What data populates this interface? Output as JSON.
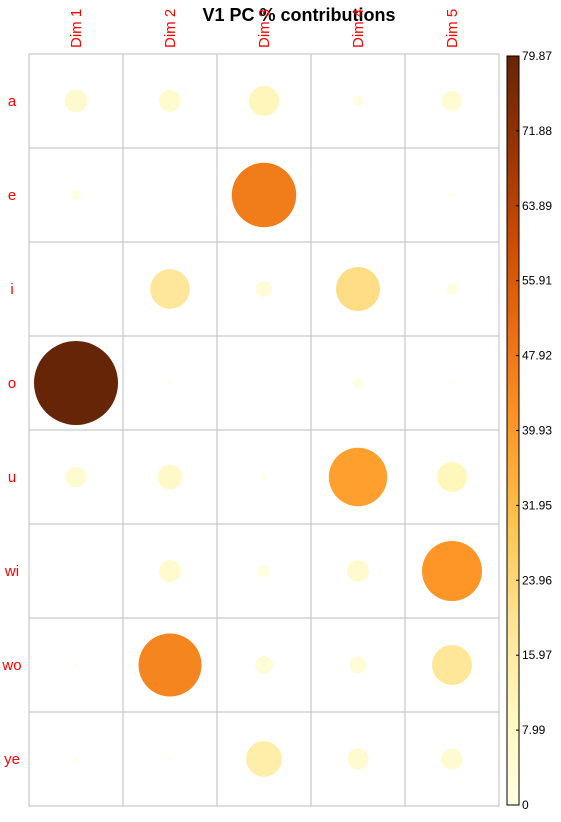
{
  "chart_data": {
    "type": "heatmap",
    "subtype": "corrplot-circles",
    "title": "V1 PC % contributions",
    "rows": [
      "a",
      "e",
      "i",
      "o",
      "u",
      "wi",
      "wo",
      "ye"
    ],
    "columns": [
      "Dim 1",
      "Dim 2",
      "Dim 3",
      "Dim 4",
      "Dim 5"
    ],
    "values": [
      [
        5.8,
        5.5,
        10.3,
        1.2,
        4.6
      ],
      [
        1.1,
        0,
        47,
        0,
        0.3
      ],
      [
        0,
        17.8,
        2.9,
        21.9,
        1.4
      ],
      [
        79.87,
        0.1,
        0,
        1.2,
        0.1
      ],
      [
        4.8,
        6.9,
        0.3,
        38.6,
        10.2
      ],
      [
        0,
        5.6,
        1.5,
        5.4,
        40.7
      ],
      [
        0.2,
        44.9,
        3.6,
        3.2,
        18.1
      ],
      [
        0.3,
        0.2,
        14.5,
        5.1,
        5.1
      ]
    ],
    "colorbar": {
      "min": 0,
      "max": 79.87,
      "ticks": [
        "79.87",
        "71.88",
        "63.89",
        "55.91",
        "47.92",
        "39.93",
        "31.95",
        "23.96",
        "15.97",
        "7.99",
        "0"
      ],
      "colors": [
        "#FFFFE5",
        "#FFF7BC",
        "#FEE391",
        "#FEC44F",
        "#FE9929",
        "#EC7014",
        "#CC4C02",
        "#993404",
        "#662506"
      ]
    },
    "grid": true,
    "legend_position": "right"
  }
}
